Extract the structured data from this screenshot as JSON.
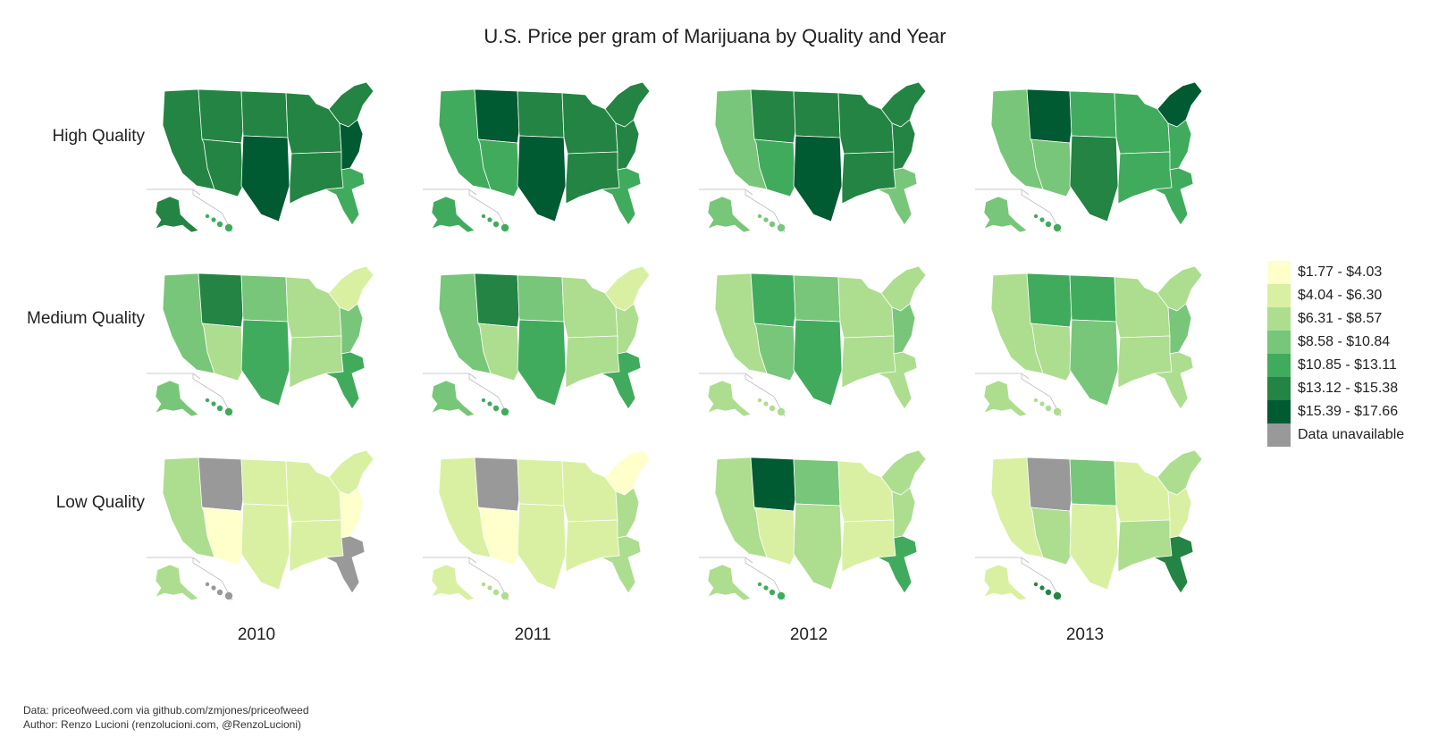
{
  "title": "U.S. Price per gram of Marijuana by Quality and Year",
  "row_labels": [
    "High Quality",
    "Medium Quality",
    "Low Quality"
  ],
  "col_labels": [
    "2010",
    "2011",
    "2012",
    "2013"
  ],
  "legend": {
    "items": [
      {
        "label": "$1.77 - $4.03",
        "color": "#ffffcc"
      },
      {
        "label": "$4.04 - $6.30",
        "color": "#d9f0a3"
      },
      {
        "label": "$6.31 - $8.57",
        "color": "#addd8e"
      },
      {
        "label": "$8.58 - $10.84",
        "color": "#78c679"
      },
      {
        "label": "$10.85 - $13.11",
        "color": "#41ab5d"
      },
      {
        "label": "$13.12 - $15.38",
        "color": "#238443"
      },
      {
        "label": "$15.39 - $17.66",
        "color": "#005a32"
      },
      {
        "label": "Data unavailable",
        "color": "#999999"
      }
    ]
  },
  "footer": {
    "data_line": "Data: priceofweed.com via github.com/zmjones/priceofweed",
    "author_line": "Author: Renzo Lucioni (renzolucioni.com, @RenzoLucioni)"
  },
  "panels": [
    {
      "quality": "High Quality",
      "year": "2010",
      "levels": [
        5,
        5,
        5,
        5,
        6,
        5,
        5,
        5,
        6,
        4
      ]
    },
    {
      "quality": "High Quality",
      "year": "2011",
      "levels": [
        4,
        6,
        4,
        5,
        6,
        5,
        5,
        5,
        5,
        4
      ]
    },
    {
      "quality": "High Quality",
      "year": "2012",
      "levels": [
        3,
        5,
        4,
        5,
        6,
        5,
        5,
        5,
        5,
        3
      ]
    },
    {
      "quality": "High Quality",
      "year": "2013",
      "levels": [
        3,
        6,
        3,
        4,
        5,
        4,
        4,
        6,
        4,
        4
      ]
    },
    {
      "quality": "Medium Quality",
      "year": "2010",
      "levels": [
        3,
        5,
        2,
        3,
        4,
        2,
        2,
        1,
        3,
        4
      ]
    },
    {
      "quality": "Medium Quality",
      "year": "2011",
      "levels": [
        3,
        5,
        2,
        3,
        4,
        2,
        2,
        1,
        2,
        4
      ]
    },
    {
      "quality": "Medium Quality",
      "year": "2012",
      "levels": [
        2,
        4,
        3,
        3,
        4,
        2,
        2,
        2,
        3,
        2
      ]
    },
    {
      "quality": "Medium Quality",
      "year": "2013",
      "levels": [
        2,
        4,
        2,
        4,
        3,
        2,
        2,
        2,
        3,
        2
      ]
    },
    {
      "quality": "Low Quality",
      "year": "2010",
      "levels": [
        2,
        -1,
        0,
        1,
        1,
        1,
        1,
        1,
        0,
        -1
      ]
    },
    {
      "quality": "Low Quality",
      "year": "2011",
      "levels": [
        1,
        -1,
        0,
        1,
        1,
        1,
        1,
        0,
        2,
        2
      ]
    },
    {
      "quality": "Low Quality",
      "year": "2012",
      "levels": [
        2,
        6,
        1,
        3,
        2,
        1,
        1,
        2,
        2,
        4
      ]
    },
    {
      "quality": "Low Quality",
      "year": "2013",
      "levels": [
        1,
        -1,
        2,
        3,
        1,
        1,
        2,
        2,
        1,
        5
      ]
    }
  ]
}
